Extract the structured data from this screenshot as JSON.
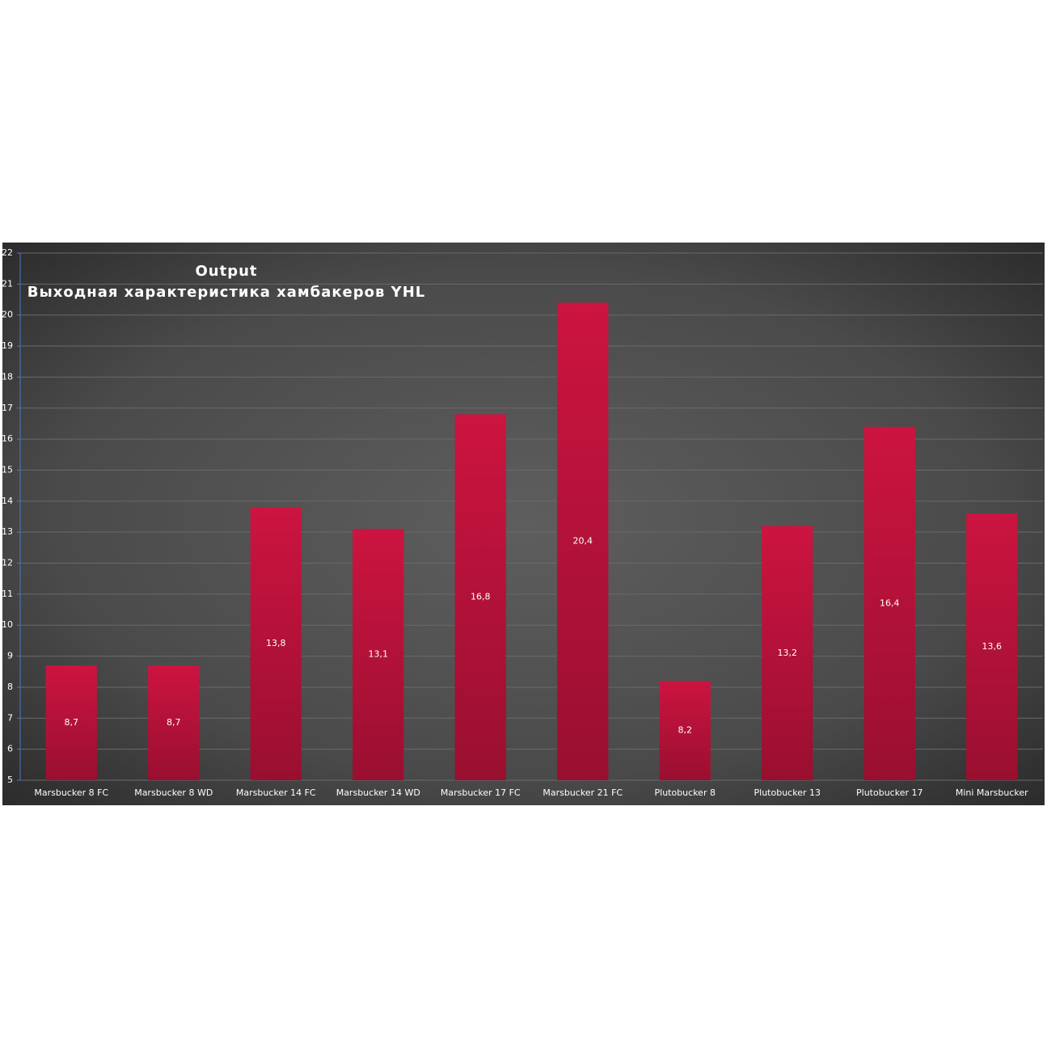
{
  "chart_data": {
    "type": "bar",
    "title": "Output",
    "subtitle": "Выходная характеристика хамбакеров YHL",
    "categories": [
      "Marsbucker 8 FC",
      "Marsbucker 8 WD",
      "Marsbucker 14 FC",
      "Marsbucker 14 WD",
      "Marsbucker 17 FC",
      "Marsbucker 21 FC",
      "Plutobucker 8",
      "Plutobucker 13",
      "Plutobucker 17",
      "Mini Marsbucker"
    ],
    "values": [
      8.7,
      8.7,
      13.8,
      13.1,
      16.8,
      20.4,
      8.2,
      13.2,
      16.4,
      13.6
    ],
    "value_labels": [
      "8,7",
      "8,7",
      "13,8",
      "13,1",
      "16,8",
      "20,4",
      "8,2",
      "13,2",
      "16,4",
      "13,6"
    ],
    "color": "#cc1440",
    "ylim": [
      5,
      22
    ],
    "yticks": [
      5,
      6,
      7,
      8,
      9,
      10,
      11,
      12,
      13,
      14,
      15,
      16,
      17,
      18,
      19,
      20,
      21,
      22
    ],
    "grid": true
  }
}
